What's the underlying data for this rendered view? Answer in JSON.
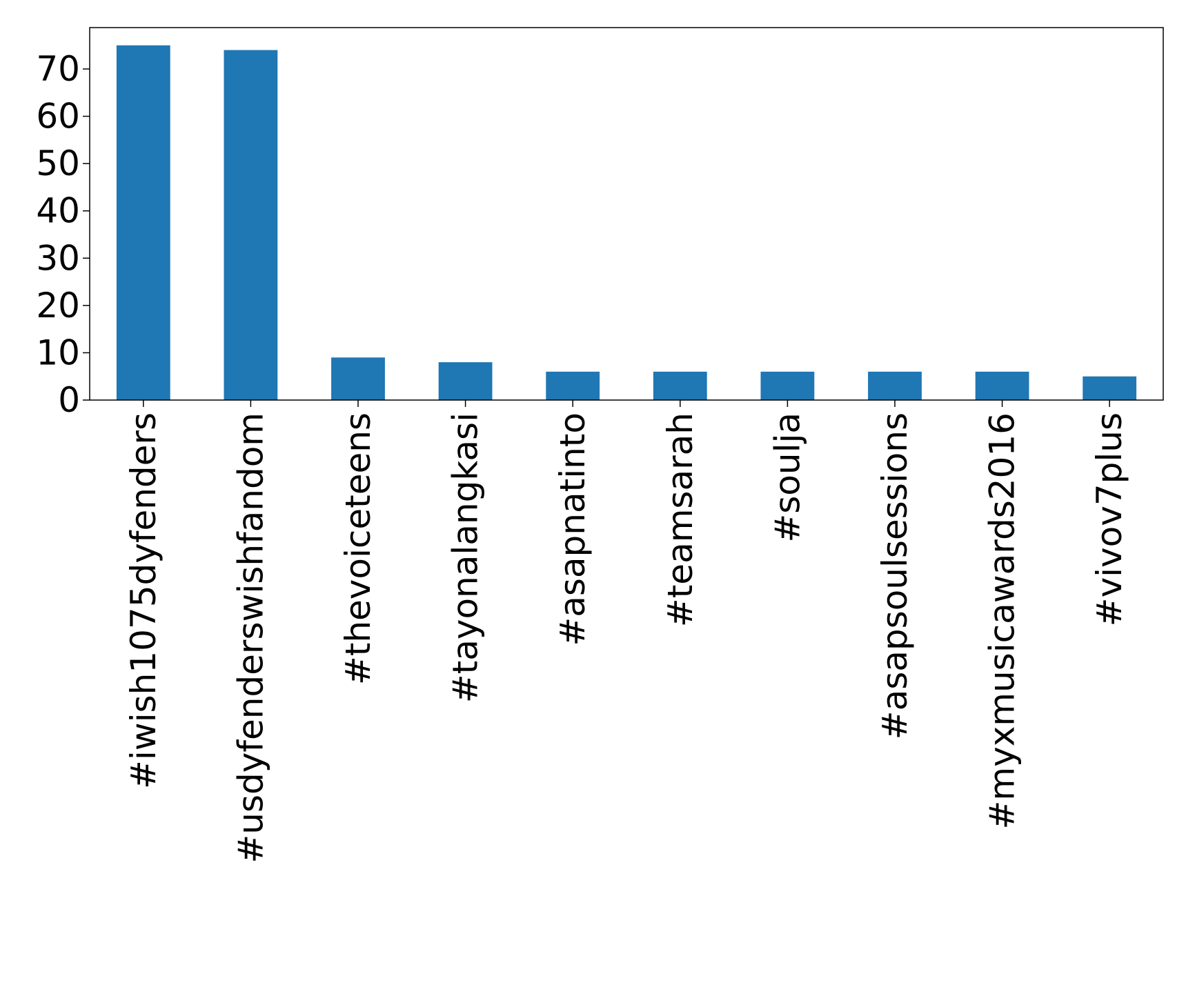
{
  "chart_data": {
    "type": "bar",
    "title": "",
    "xlabel": "",
    "ylabel": "",
    "categories": [
      "#iwish1075dyfenders",
      "#usdyfenderswishfandom",
      "#thevoiceteens",
      "#tayonalangkasi",
      "#asapnatinto",
      "#teamsarah",
      "#soulja",
      "#asapsoulsessions",
      "#myxmusicawards2016",
      "#vivov7plus"
    ],
    "values": [
      75,
      74,
      9,
      8,
      6,
      6,
      6,
      6,
      6,
      5
    ],
    "ylim": [
      0,
      78.75
    ],
    "yticks": [
      0,
      10,
      20,
      30,
      40,
      50,
      60,
      70
    ],
    "grid": false,
    "legend": "none",
    "bar_color": "#1f77b4"
  }
}
